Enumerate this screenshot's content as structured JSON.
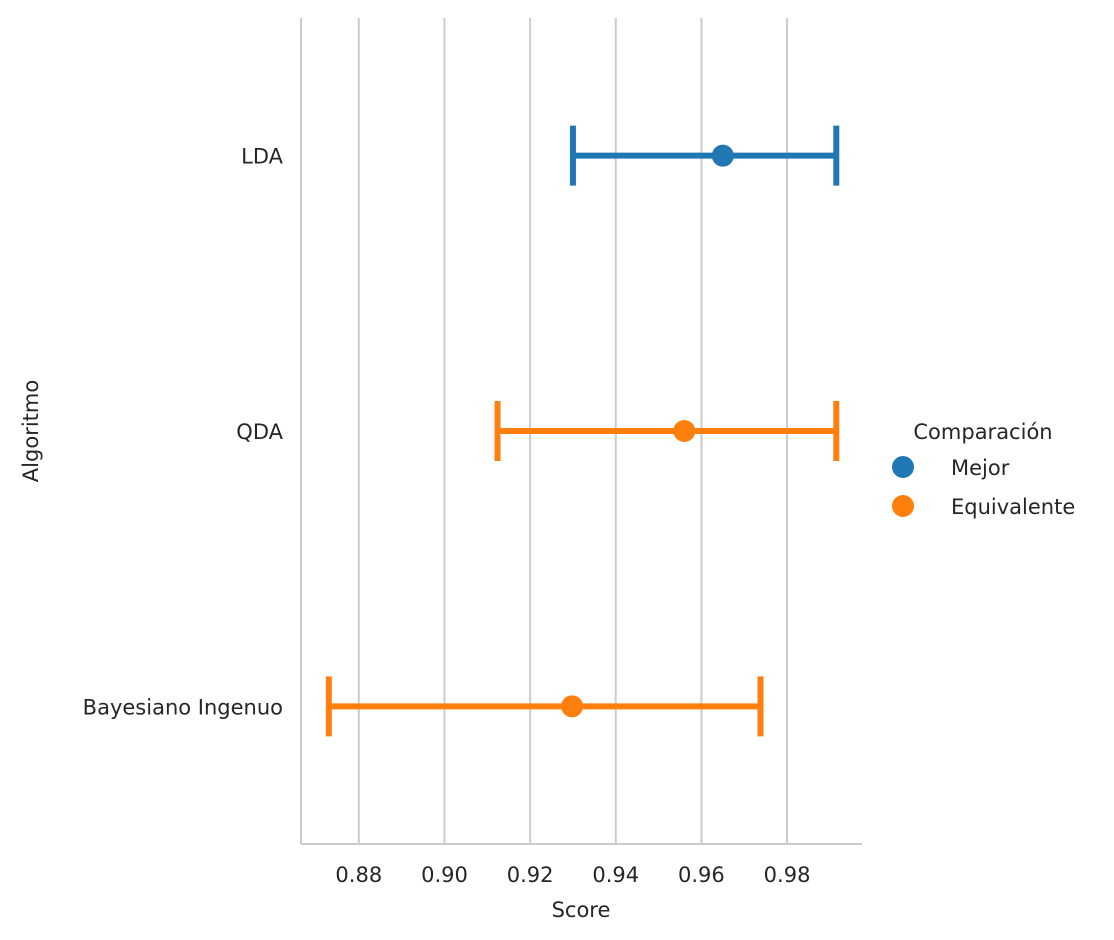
{
  "chart_data": {
    "type": "point",
    "xlabel": "Score",
    "ylabel": "Algoritmo",
    "xlim": [
      0.8665,
      0.9975
    ],
    "xticks": [
      0.88,
      0.9,
      0.92,
      0.94,
      0.96,
      0.98
    ],
    "xtick_labels": [
      "0.88",
      "0.90",
      "0.92",
      "0.94",
      "0.96",
      "0.98"
    ],
    "grid": "vertical",
    "categories": [
      "LDA",
      "QDA",
      "Bayesiano Ingenuo"
    ],
    "legend": {
      "title": "Comparación",
      "placement": "right",
      "entries": [
        {
          "label": "Mejor",
          "color": "#1f77b4"
        },
        {
          "label": "Equivalente",
          "color": "#ff7f0e"
        }
      ]
    },
    "points": [
      {
        "category": "LDA",
        "group": "Mejor",
        "value": 0.965,
        "ci": [
          0.93,
          0.9915
        ]
      },
      {
        "category": "QDA",
        "group": "Equivalente",
        "value": 0.956,
        "ci": [
          0.9124,
          0.9915
        ]
      },
      {
        "category": "Bayesiano Ingenuo",
        "group": "Equivalente",
        "value": 0.9298,
        "ci": [
          0.873,
          0.9738
        ]
      }
    ]
  }
}
